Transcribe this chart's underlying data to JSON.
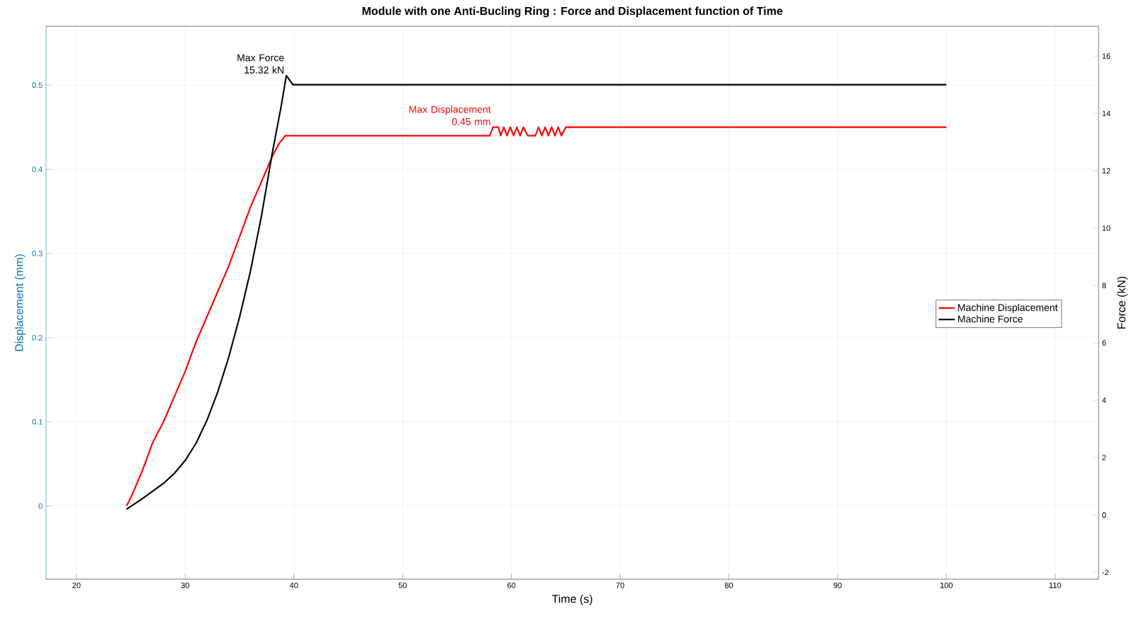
{
  "chart_data": {
    "type": "line",
    "title": "Module with one Anti-Bucling Ring : Force and Displacement function of Time",
    "xlabel": "Time (s)",
    "ylabel": "Displacement (mm)",
    "y2label": "Force (kN)",
    "xlim": [
      17.2,
      114
    ],
    "xticks": [
      20,
      30,
      40,
      50,
      60,
      70,
      80,
      90,
      100,
      110
    ],
    "ylim": [
      -0.087,
      0.57
    ],
    "yticks": [
      0,
      0.1,
      0.2,
      0.3,
      0.4,
      0.5
    ],
    "y2lim": [
      -2.24,
      17.04
    ],
    "y2ticks": [
      -2,
      0,
      2,
      4,
      6,
      8,
      10,
      12,
      14,
      16
    ],
    "grid": true,
    "legend": "right",
    "marker": "none",
    "line_style": "solid",
    "annotations": [
      "Max Displacement 0.45 mm",
      "Max Force 15.32 kN"
    ],
    "series": [
      {
        "name": "Machine Displacement",
        "color": "#ff0000",
        "x": [
          24.6,
          25,
          26,
          27,
          28,
          29,
          30,
          31,
          32,
          33,
          34,
          35,
          36,
          37,
          38,
          38.6,
          39.2,
          58,
          58.3,
          58.8,
          59,
          59.3,
          59.6,
          59.9,
          60.2,
          60.5,
          60.8,
          61.1,
          61.5,
          62.2,
          62.5,
          62.8,
          63.1,
          63.4,
          63.7,
          64,
          64.3,
          64.6,
          65,
          100
        ],
        "values": [
          0,
          0.01,
          0.04,
          0.075,
          0.1,
          0.13,
          0.16,
          0.195,
          0.225,
          0.255,
          0.285,
          0.32,
          0.355,
          0.385,
          0.415,
          0.43,
          0.44,
          0.44,
          0.45,
          0.45,
          0.44,
          0.45,
          0.44,
          0.45,
          0.44,
          0.45,
          0.44,
          0.45,
          0.44,
          0.44,
          0.45,
          0.44,
          0.45,
          0.44,
          0.45,
          0.44,
          0.45,
          0.44,
          0.45,
          0.45
        ]
      },
      {
        "name": "Machine Force",
        "color": "#000000",
        "axis": "y2",
        "x": [
          24.6,
          26,
          28,
          29,
          30,
          31,
          32,
          33,
          34,
          35,
          36,
          37,
          38,
          38.8,
          39.3,
          39.9,
          40.5,
          100
        ],
        "values": [
          0.2,
          0.55,
          1.1,
          1.45,
          1.9,
          2.5,
          3.3,
          4.3,
          5.5,
          6.9,
          8.5,
          10.4,
          12.6,
          14.2,
          15.32,
          15.0,
          15.0,
          15.0
        ]
      }
    ]
  }
}
